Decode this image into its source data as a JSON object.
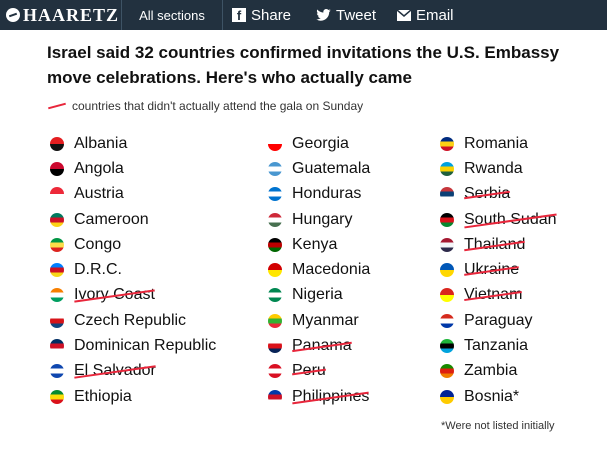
{
  "topbar": {
    "logo_text": "HAARETZ",
    "sections_label": "All sections",
    "share_facebook": "Share",
    "share_twitter": "Tweet",
    "share_email": "Email",
    "background_color": "#22313f"
  },
  "title": "Israel said 32 countries confirmed invitations the U.S. Embassy move celebrations. Here's who actually came",
  "legend": {
    "label": "countries that didn't actually attend the gala on Sunday",
    "color": "#e8263b"
  },
  "columns": [
    [
      {
        "name": "Albania",
        "attended": true,
        "flag_colors": [
          "#e41e20",
          "#111111"
        ]
      },
      {
        "name": "Angola",
        "attended": true,
        "flag_colors": [
          "#cc092f",
          "#000000"
        ]
      },
      {
        "name": "Austria",
        "attended": true,
        "flag_colors": [
          "#ed2939",
          "#ffffff"
        ]
      },
      {
        "name": "Cameroon",
        "attended": true,
        "flag_colors": [
          "#007a5e",
          "#ce1126",
          "#fcd116"
        ]
      },
      {
        "name": "Congo",
        "attended": true,
        "flag_colors": [
          "#009543",
          "#fbde4a",
          "#dc241f"
        ]
      },
      {
        "name": "D.R.C.",
        "attended": true,
        "flag_colors": [
          "#007fff",
          "#ce1021",
          "#f7d618"
        ]
      },
      {
        "name": "Ivory Coast",
        "attended": false,
        "flag_colors": [
          "#f77f00",
          "#ffffff",
          "#009e60"
        ]
      },
      {
        "name": "Czech Republic",
        "attended": true,
        "flag_colors": [
          "#ffffff",
          "#d7141a",
          "#11457e"
        ]
      },
      {
        "name": "Dominican Republic",
        "attended": true,
        "flag_colors": [
          "#002d62",
          "#ce1126",
          "#ffffff"
        ]
      },
      {
        "name": "El Salvador",
        "attended": false,
        "flag_colors": [
          "#0f47af",
          "#ffffff",
          "#0f47af"
        ]
      },
      {
        "name": "Ethiopia",
        "attended": true,
        "flag_colors": [
          "#078930",
          "#fcdd09",
          "#da121a"
        ]
      }
    ],
    [
      {
        "name": "Georgia",
        "attended": true,
        "flag_colors": [
          "#ffffff",
          "#ff0000"
        ]
      },
      {
        "name": "Guatemala",
        "attended": true,
        "flag_colors": [
          "#4997d0",
          "#ffffff",
          "#4997d0"
        ]
      },
      {
        "name": "Honduras",
        "attended": true,
        "flag_colors": [
          "#0073cf",
          "#ffffff",
          "#0073cf"
        ]
      },
      {
        "name": "Hungary",
        "attended": true,
        "flag_colors": [
          "#ce2939",
          "#ffffff",
          "#477050"
        ]
      },
      {
        "name": "Kenya",
        "attended": true,
        "flag_colors": [
          "#000000",
          "#bb0000",
          "#006600"
        ]
      },
      {
        "name": "Macedonia",
        "attended": true,
        "flag_colors": [
          "#d20000",
          "#ffe600"
        ]
      },
      {
        "name": "Nigeria",
        "attended": true,
        "flag_colors": [
          "#008751",
          "#ffffff",
          "#008751"
        ]
      },
      {
        "name": "Myanmar",
        "attended": true,
        "flag_colors": [
          "#fecb00",
          "#34b233",
          "#ea2839"
        ]
      },
      {
        "name": "Panama",
        "attended": false,
        "flag_colors": [
          "#ffffff",
          "#da121a",
          "#072357"
        ]
      },
      {
        "name": "Peru",
        "attended": false,
        "flag_colors": [
          "#d91023",
          "#ffffff",
          "#d91023"
        ]
      },
      {
        "name": "Philippines",
        "attended": false,
        "flag_colors": [
          "#0038a8",
          "#ce1126",
          "#ffffff"
        ]
      }
    ],
    [
      {
        "name": "Romania",
        "attended": true,
        "flag_colors": [
          "#002b7f",
          "#fcd116",
          "#ce1126"
        ]
      },
      {
        "name": "Rwanda",
        "attended": true,
        "flag_colors": [
          "#00a1de",
          "#fad201",
          "#20603d"
        ]
      },
      {
        "name": "Serbia",
        "attended": false,
        "flag_colors": [
          "#c6363c",
          "#0c4076",
          "#ffffff"
        ]
      },
      {
        "name": "South Sudan",
        "attended": false,
        "flag_colors": [
          "#000000",
          "#da121a",
          "#078930"
        ]
      },
      {
        "name": "Thailand",
        "attended": false,
        "flag_colors": [
          "#a51931",
          "#f4f5f8",
          "#2d2a4a"
        ]
      },
      {
        "name": "Ukraine",
        "attended": false,
        "flag_colors": [
          "#0057b7",
          "#ffd700"
        ]
      },
      {
        "name": "Vietnam",
        "attended": false,
        "flag_colors": [
          "#da251d",
          "#ffff00"
        ]
      },
      {
        "name": "Paraguay",
        "attended": true,
        "flag_colors": [
          "#d52b1e",
          "#ffffff",
          "#0038a8"
        ]
      },
      {
        "name": "Tanzania",
        "attended": true,
        "flag_colors": [
          "#1eb53a",
          "#000000",
          "#00a3dd"
        ]
      },
      {
        "name": "Zambia",
        "attended": true,
        "flag_colors": [
          "#198a00",
          "#de2010",
          "#ef7d00"
        ]
      },
      {
        "name": "Bosnia*",
        "attended": true,
        "flag_colors": [
          "#002395",
          "#fecb00"
        ]
      }
    ]
  ],
  "footnote": "*Were not listed initially"
}
